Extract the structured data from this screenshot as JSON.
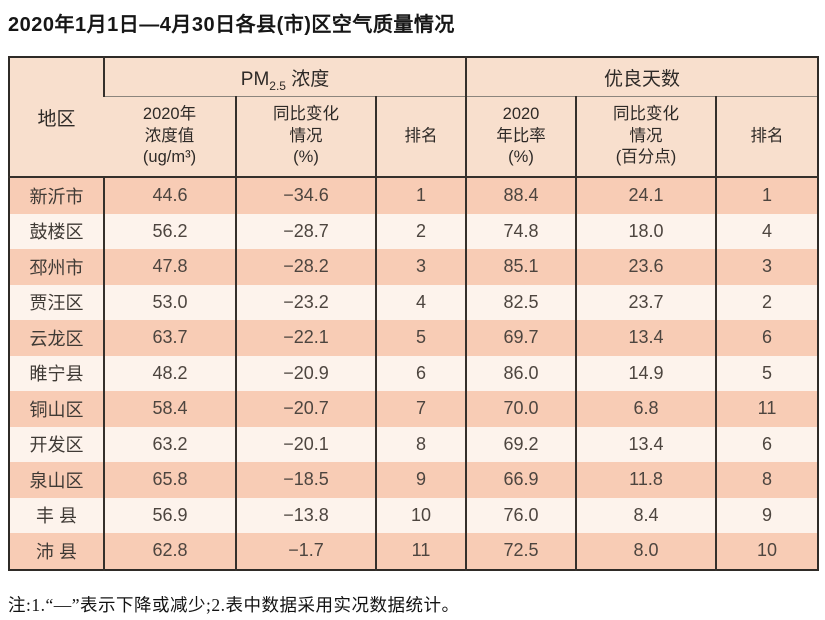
{
  "page": {
    "title": "2020年1月1日—4月30日各县(市)区空气质量情况",
    "footnote": "注:1.“—”表示下降或减少;2.表中数据采用实况数据统计。"
  },
  "table": {
    "corner_header": "地区",
    "pm_group": {
      "prefix": "PM",
      "sub": "2.5",
      "suffix": " 浓度"
    },
    "good_group_label": "优良天数",
    "sub_headers": [
      "2020年\n浓度值\n(ug/m³)",
      "同比变化\n情况\n(%)",
      "排名",
      "2020\n年比率\n(%)",
      "同比变化\n情况\n(百分点)",
      "排名"
    ],
    "rows": [
      {
        "region": "新沂市",
        "pm": "44.6",
        "pm_change": "−34.6",
        "pm_rank": "1",
        "rate": "88.4",
        "rate_change": "24.1",
        "rate_rank": "1"
      },
      {
        "region": "鼓楼区",
        "pm": "56.2",
        "pm_change": "−28.7",
        "pm_rank": "2",
        "rate": "74.8",
        "rate_change": "18.0",
        "rate_rank": "4"
      },
      {
        "region": "邳州市",
        "pm": "47.8",
        "pm_change": "−28.2",
        "pm_rank": "3",
        "rate": "85.1",
        "rate_change": "23.6",
        "rate_rank": "3"
      },
      {
        "region": "贾汪区",
        "pm": "53.0",
        "pm_change": "−23.2",
        "pm_rank": "4",
        "rate": "82.5",
        "rate_change": "23.7",
        "rate_rank": "2"
      },
      {
        "region": "云龙区",
        "pm": "63.7",
        "pm_change": "−22.1",
        "pm_rank": "5",
        "rate": "69.7",
        "rate_change": "13.4",
        "rate_rank": "6"
      },
      {
        "region": "睢宁县",
        "pm": "48.2",
        "pm_change": "−20.9",
        "pm_rank": "6",
        "rate": "86.0",
        "rate_change": "14.9",
        "rate_rank": "5"
      },
      {
        "region": "铜山区",
        "pm": "58.4",
        "pm_change": "−20.7",
        "pm_rank": "7",
        "rate": "70.0",
        "rate_change": "6.8",
        "rate_rank": "11"
      },
      {
        "region": "开发区",
        "pm": "63.2",
        "pm_change": "−20.1",
        "pm_rank": "8",
        "rate": "69.2",
        "rate_change": "13.4",
        "rate_rank": "6"
      },
      {
        "region": "泉山区",
        "pm": "65.8",
        "pm_change": "−18.5",
        "pm_rank": "9",
        "rate": "66.9",
        "rate_change": "11.8",
        "rate_rank": "8"
      },
      {
        "region": "丰 县",
        "pm": "56.9",
        "pm_change": "−13.8",
        "pm_rank": "10",
        "rate": "76.0",
        "rate_change": "8.4",
        "rate_rank": "9"
      },
      {
        "region": "沛 县",
        "pm": "62.8",
        "pm_change": "−1.7",
        "pm_rank": "11",
        "rate": "72.5",
        "rate_change": "8.0",
        "rate_rank": "10"
      }
    ],
    "colors": {
      "header_bg": "#f8dfcd",
      "row_odd_bg": "#f8ccb5",
      "row_even_bg": "#fdf3ec",
      "border_dark": "#35302b"
    }
  }
}
